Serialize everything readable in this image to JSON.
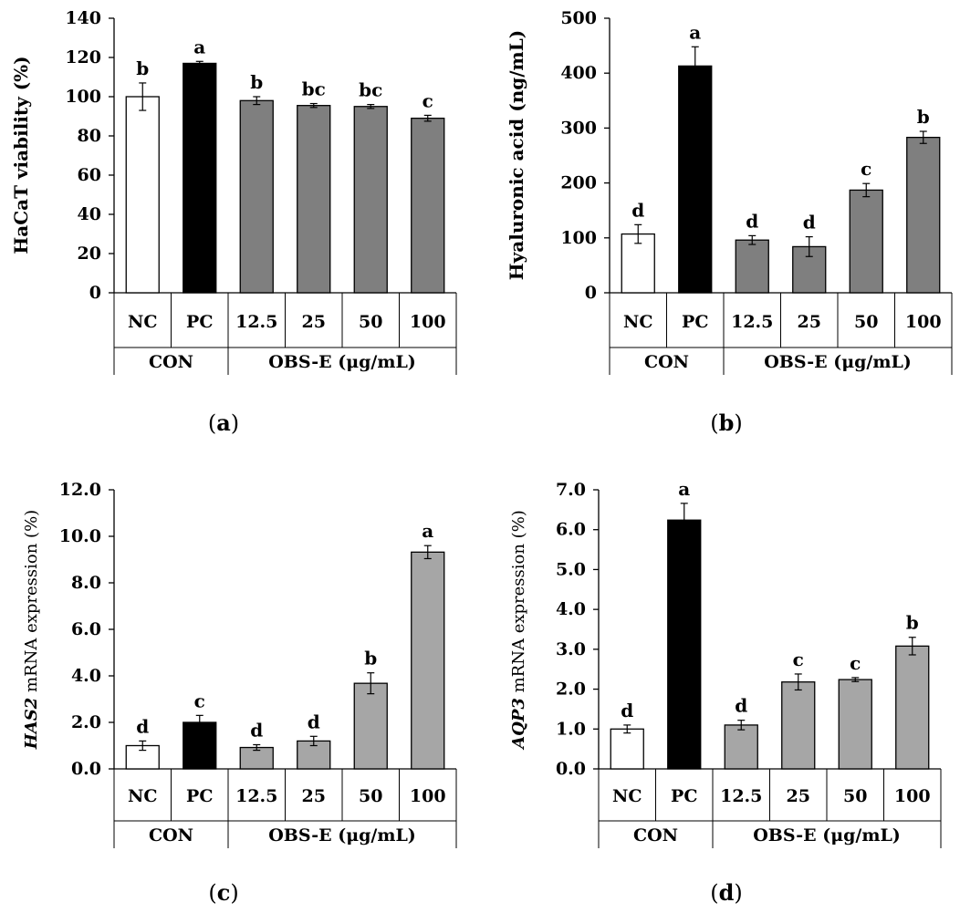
{
  "figure": {
    "panel_labels": [
      "(a)",
      "(b)",
      "(c)",
      "(d)"
    ]
  },
  "colors": {
    "NC": "#ffffff",
    "PC": "#000000",
    "OBS_dark": "#7f7f7f",
    "OBS_light": "#a6a6a6",
    "stroke": "#000000"
  },
  "chart_data": [
    {
      "type": "bar",
      "panel": "(a)",
      "ylabel": "HaCaT  viability (%)",
      "ylabel_italic_prefix": "",
      "ylim": [
        0,
        140
      ],
      "yticks": [
        "0",
        "20",
        "40",
        "60",
        "80",
        "100",
        "120",
        "140"
      ],
      "ytick_values": [
        0,
        20,
        40,
        60,
        80,
        100,
        120,
        140
      ],
      "categories": [
        "NC",
        "PC",
        "12.5",
        "25",
        "50",
        "100"
      ],
      "groups": [
        {
          "label": "CON",
          "span": 2
        },
        {
          "label": "OBS-E (μg/mL)",
          "span": 4
        }
      ],
      "values": [
        100,
        117,
        98,
        95.5,
        95,
        89
      ],
      "errors": [
        7,
        1,
        2,
        1,
        1,
        1.5
      ],
      "letters": [
        "b",
        "a",
        "b",
        "bc",
        "bc",
        "c"
      ],
      "fills": [
        "NC",
        "PC",
        "OBS_dark",
        "OBS_dark",
        "OBS_dark",
        "OBS_dark"
      ]
    },
    {
      "type": "bar",
      "panel": "(b)",
      "ylabel": "Hyaluronic acid (ng/mL)",
      "ylabel_italic_prefix": "",
      "ylim": [
        0,
        500
      ],
      "yticks": [
        "0",
        "100",
        "200",
        "300",
        "400",
        "500"
      ],
      "ytick_values": [
        0,
        100,
        200,
        300,
        400,
        500
      ],
      "categories": [
        "NC",
        "PC",
        "12.5",
        "25",
        "50",
        "100"
      ],
      "groups": [
        {
          "label": "CON",
          "span": 2
        },
        {
          "label": "OBS-E (μg/mL)",
          "span": 4
        }
      ],
      "values": [
        107,
        413,
        96,
        84,
        187,
        283
      ],
      "errors": [
        17,
        35,
        8,
        18,
        12,
        11
      ],
      "letters": [
        "d",
        "a",
        "d",
        "d",
        "c",
        "b"
      ],
      "fills": [
        "NC",
        "PC",
        "OBS_dark",
        "OBS_dark",
        "OBS_dark",
        "OBS_dark"
      ]
    },
    {
      "type": "bar",
      "panel": "(c)",
      "ylabel": " mRNA expression (%)",
      "ylabel_italic_prefix": "HAS2",
      "ylim": [
        0,
        12
      ],
      "yticks": [
        "0.0",
        "2.0",
        "4.0",
        "6.0",
        "8.0",
        "10.0",
        "12.0"
      ],
      "ytick_values": [
        0,
        2,
        4,
        6,
        8,
        10,
        12
      ],
      "categories": [
        "NC",
        "PC",
        "12.5",
        "25",
        "50",
        "100"
      ],
      "groups": [
        {
          "label": "CON",
          "span": 2
        },
        {
          "label": "OBS-E (μg/mL)",
          "span": 4
        }
      ],
      "values": [
        1.0,
        2.0,
        0.92,
        1.2,
        3.68,
        9.32
      ],
      "errors": [
        0.2,
        0.3,
        0.12,
        0.2,
        0.45,
        0.28
      ],
      "letters": [
        "d",
        "c",
        "d",
        "d",
        "b",
        "a"
      ],
      "fills": [
        "NC",
        "PC",
        "OBS_light",
        "OBS_light",
        "OBS_light",
        "OBS_light"
      ]
    },
    {
      "type": "bar",
      "panel": "(d)",
      "ylabel": " mRNA expression (%)",
      "ylabel_italic_prefix": "AQP3",
      "ylim": [
        0,
        7
      ],
      "yticks": [
        "0.0",
        "1.0",
        "2.0",
        "3.0",
        "4.0",
        "5.0",
        "6.0",
        "7.0"
      ],
      "ytick_values": [
        0,
        1,
        2,
        3,
        4,
        5,
        6,
        7
      ],
      "categories": [
        "NC",
        "PC",
        "12.5",
        "25",
        "50",
        "100"
      ],
      "groups": [
        {
          "label": "CON",
          "span": 2
        },
        {
          "label": "OBS-E (μg/mL)",
          "span": 4
        }
      ],
      "values": [
        1.0,
        6.24,
        1.1,
        2.18,
        2.24,
        3.08
      ],
      "errors": [
        0.1,
        0.42,
        0.12,
        0.2,
        0.05,
        0.22
      ],
      "letters": [
        "d",
        "a",
        "d",
        "c",
        "c",
        "b"
      ],
      "fills": [
        "NC",
        "PC",
        "OBS_light",
        "OBS_light",
        "OBS_light",
        "OBS_light"
      ]
    }
  ]
}
